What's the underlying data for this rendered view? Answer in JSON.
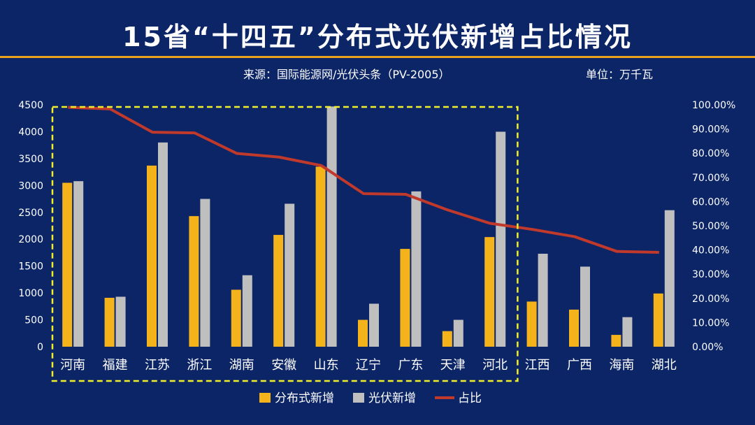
{
  "header": {
    "title": "15省“十四五”分布式光伏新增占比情况",
    "source": "来源：国际能源网/光伏头条（PV-2005）",
    "unit": "单位：万千瓦"
  },
  "colors": {
    "background": "#0c2566",
    "distributed": "#f5b31b",
    "pv": "#bfbfbf",
    "share": "#c0392b",
    "highlight_box": "#f3ee2a"
  },
  "chart_data": {
    "type": "bar",
    "categories": [
      "河南",
      "福建",
      "江苏",
      "浙江",
      "湖南",
      "安徽",
      "山东",
      "辽宁",
      "广东",
      "天津",
      "河北",
      "江西",
      "广西",
      "海南",
      "湖北"
    ],
    "series": [
      {
        "name": "分布式新增",
        "type": "bar",
        "axis": "left",
        "values": [
          3050,
          910,
          3370,
          2430,
          1060,
          2080,
          3350,
          500,
          1820,
          290,
          2040,
          840,
          690,
          220,
          990
        ]
      },
      {
        "name": "光伏新增",
        "type": "bar",
        "axis": "left",
        "values": [
          3080,
          930,
          3800,
          2750,
          1330,
          2660,
          4470,
          800,
          2890,
          500,
          4000,
          1730,
          1490,
          550,
          2540
        ]
      },
      {
        "name": "占比",
        "type": "line",
        "axis": "right",
        "values": [
          99.0,
          98.3,
          88.7,
          88.4,
          79.9,
          78.4,
          74.9,
          63.3,
          63.0,
          56.5,
          51.0,
          48.5,
          45.5,
          39.4,
          39.0
        ]
      }
    ],
    "left_axis": {
      "ticks": [
        "0",
        "500",
        "1000",
        "1500",
        "2000",
        "2500",
        "3000",
        "3500",
        "4000",
        "4500"
      ],
      "range": [
        0,
        4500
      ]
    },
    "right_axis": {
      "ticks": [
        "0.00%",
        "10.00%",
        "20.00%",
        "30.00%",
        "40.00%",
        "50.00%",
        "60.00%",
        "70.00%",
        "80.00%",
        "90.00%",
        "100.00%"
      ],
      "range": [
        0,
        100
      ]
    },
    "highlight_count": 11,
    "legend_position": "bottom-center"
  }
}
